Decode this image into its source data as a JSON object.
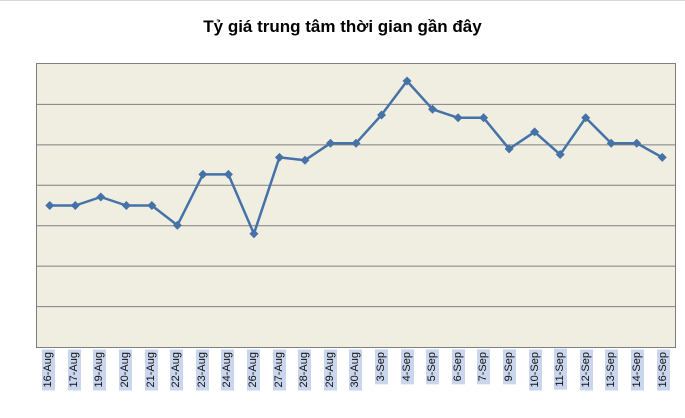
{
  "chart_data": {
    "type": "line",
    "title": "Tỷ giá trung tâm thời gian gần đây",
    "categories": [
      "16-Aug",
      "17-Aug",
      "19-Aug",
      "20-Aug",
      "21-Aug",
      "22-Aug",
      "23-Aug",
      "24-Aug",
      "26-Aug",
      "27-Aug",
      "28-Aug",
      "29-Aug",
      "30-Aug",
      "3-Sep",
      "4-Sep",
      "5-Sep",
      "6-Sep",
      "7-Sep",
      "9-Sep",
      "10-Sep",
      "11-Sep",
      "12-Sep",
      "13-Sep",
      "14-Sep",
      "16-Sep"
    ],
    "values": [
      50,
      50,
      53,
      50,
      50,
      43,
      61,
      61,
      40,
      67,
      66,
      72,
      72,
      82,
      94,
      84,
      81,
      81,
      70,
      76,
      68,
      81,
      72,
      72,
      67
    ],
    "ylim": [
      0,
      100
    ],
    "y_axis_labels_visible": false,
    "xlabel": "",
    "ylabel": "",
    "legend": "none",
    "grid": true,
    "grid_bands": 7,
    "marker": "diamond",
    "line_color": "#4572a7",
    "grid_color": "#808080",
    "plot_bg": "#f0ede1",
    "label_bg": "#c9d6ee"
  }
}
